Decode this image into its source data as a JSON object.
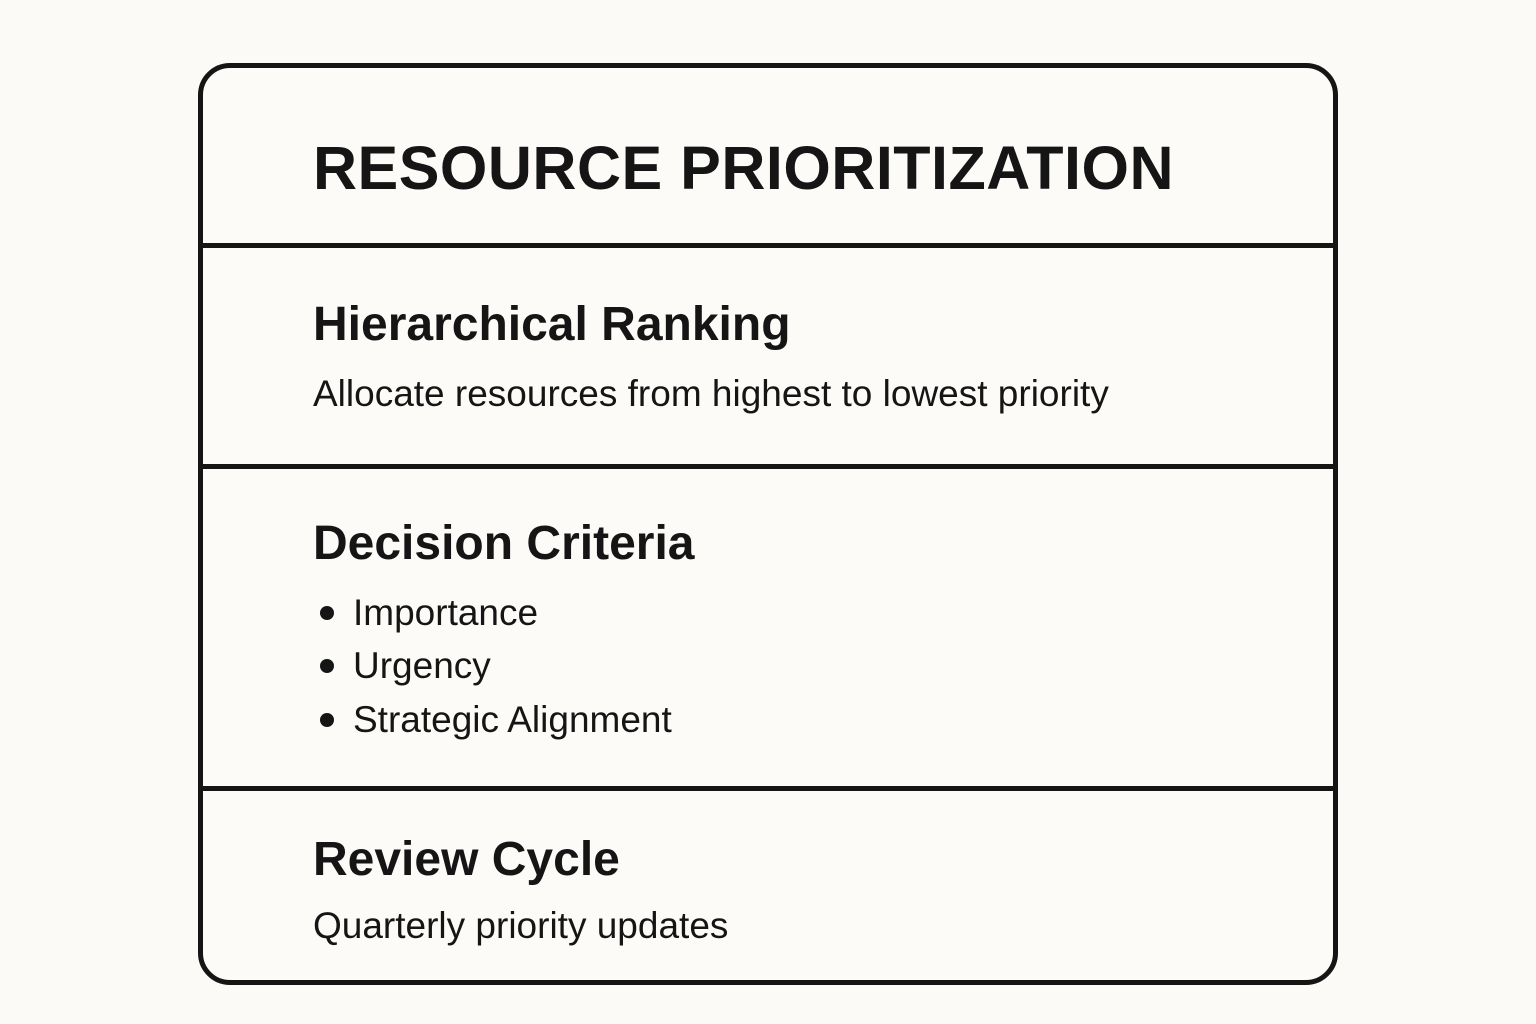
{
  "title": "RESOURCE PRIORITIZATION",
  "sections": [
    {
      "heading": "Hierarchical Ranking",
      "text": "Allocate resources from highest to lowest priority"
    },
    {
      "heading": "Decision Criteria",
      "bullets": [
        "Importance",
        "Urgency",
        "Strategic Alignment"
      ]
    },
    {
      "heading": "Review Cycle",
      "text": "Quarterly priority updates"
    }
  ],
  "colors": {
    "border": "#151515",
    "background": "#fcfbf8"
  }
}
